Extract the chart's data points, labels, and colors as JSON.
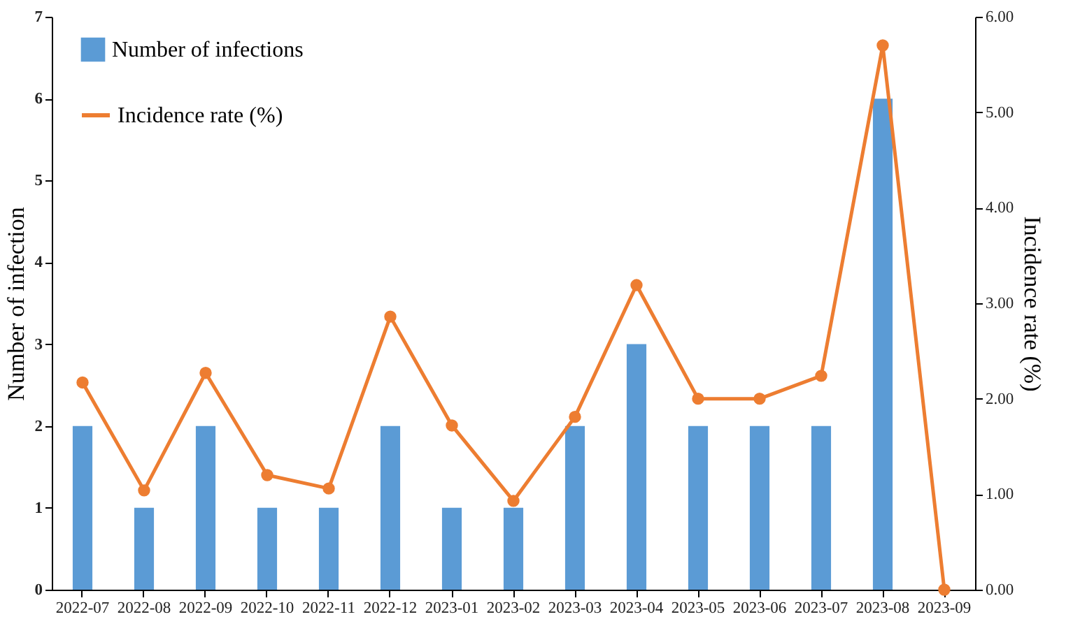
{
  "chart_data": {
    "type": "bar",
    "categories": [
      "2022-07",
      "2022-08",
      "2022-09",
      "2022-10",
      "2022-11",
      "2022-12",
      "2023-01",
      "2023-02",
      "2023-03",
      "2023-04",
      "2023-05",
      "2023-06",
      "2023-07",
      "2023-08",
      "2023-09"
    ],
    "series": [
      {
        "name": "Number of infections",
        "color": "#5b9bd5",
        "values": [
          2,
          1,
          2,
          1,
          1,
          2,
          1,
          1,
          2,
          3,
          2,
          2,
          2,
          6,
          0
        ]
      },
      {
        "name": "Incidence rate (%)",
        "type": "line",
        "axis": "y2",
        "color": "#ed7d31",
        "values": [
          2.17,
          1.04,
          2.27,
          1.2,
          1.06,
          2.86,
          1.72,
          0.93,
          1.81,
          3.19,
          2.0,
          2.0,
          2.24,
          5.7,
          0
        ]
      }
    ],
    "ylabel": "Number of infection",
    "y2label": "Incidence rate (%)",
    "ylim": [
      0,
      7
    ],
    "yticks": [
      0,
      1,
      2,
      3,
      4,
      5,
      6,
      7
    ],
    "y2lim": [
      0,
      6
    ],
    "y2ticks": [
      {
        "value": 0,
        "label": "0.00"
      },
      {
        "value": 1,
        "label": "1.00"
      },
      {
        "value": 2,
        "label": "2.00"
      },
      {
        "value": 3,
        "label": "3.00"
      },
      {
        "value": 4,
        "label": "4.00"
      },
      {
        "value": 5,
        "label": "5.00"
      },
      {
        "value": 6,
        "label": "6.00"
      }
    ],
    "grid": false,
    "legend": "top left",
    "marker": "circle",
    "line_style": "solid"
  }
}
